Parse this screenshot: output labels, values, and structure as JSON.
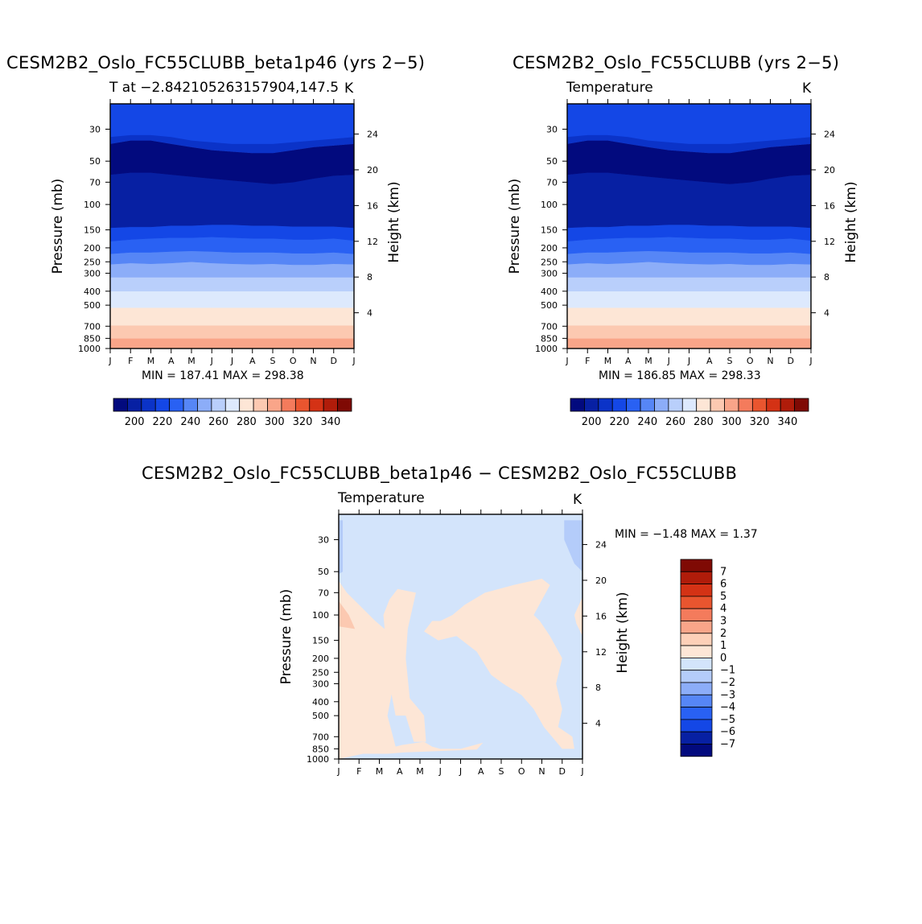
{
  "chart_data": [
    {
      "type": "contour",
      "title": "CESM2B2_Oslo_FC55CLUBB_beta1p46 (yrs 2−5)",
      "subtitle_left": "T at −2.842105263157904,147.5",
      "subtitle_right": "K",
      "xlabel": "",
      "ylabel": "Pressure (mb)",
      "ylabel_right": "Height (km)",
      "x_ticks": [
        "J",
        "F",
        "M",
        "A",
        "M",
        "J",
        "J",
        "A",
        "S",
        "O",
        "N",
        "D",
        "J"
      ],
      "y_ticks": [
        30,
        50,
        70,
        100,
        150,
        200,
        250,
        300,
        400,
        500,
        700,
        850,
        1000
      ],
      "y_ticks_right": [
        24,
        20,
        16,
        12,
        8,
        4
      ],
      "min_label": "MIN = 187.41  MAX = 298.38",
      "colorbar_labels": [
        "200",
        "220",
        "240",
        "260",
        "280",
        "300",
        "320",
        "340"
      ],
      "contour_levels": [
        190,
        200,
        210,
        220,
        230,
        240,
        250,
        260,
        270,
        280,
        290,
        300,
        310,
        320,
        330,
        340
      ],
      "band_boundaries_mb": [
        {
          "level": 270,
          "values": [
            520,
            520,
            520,
            520,
            520,
            520,
            520,
            520,
            520,
            520,
            520,
            520,
            520
          ]
        },
        {
          "level": 260,
          "values": [
            400,
            400,
            400,
            400,
            400,
            400,
            400,
            400,
            400,
            400,
            400,
            400,
            400
          ]
        },
        {
          "level": 250,
          "values": [
            320,
            320,
            320,
            320,
            320,
            320,
            320,
            320,
            320,
            320,
            320,
            320,
            320
          ]
        },
        {
          "level": 240,
          "values": [
            260,
            255,
            258,
            255,
            250,
            255,
            258,
            260,
            258,
            262,
            262,
            258,
            260
          ]
        },
        {
          "level": 230,
          "values": [
            220,
            215,
            215,
            212,
            210,
            212,
            215,
            215,
            215,
            218,
            218,
            215,
            220
          ]
        },
        {
          "level": 220,
          "values": [
            180,
            175,
            172,
            170,
            170,
            168,
            170,
            172,
            172,
            175,
            175,
            172,
            178
          ]
        },
        {
          "level": 210,
          "values": [
            145,
            143,
            143,
            140,
            140,
            138,
            138,
            140,
            140,
            142,
            142,
            142,
            145
          ]
        },
        {
          "level": 200,
          "values": [
            62,
            60,
            60,
            62,
            64,
            66,
            68,
            70,
            72,
            70,
            66,
            63,
            62
          ]
        },
        {
          "level": 210,
          "values": [
            38,
            36,
            36,
            38,
            40,
            42,
            43,
            44,
            44,
            42,
            40,
            39,
            38
          ]
        }
      ]
    },
    {
      "type": "contour",
      "title": "CESM2B2_Oslo_FC55CLUBB (yrs 2−5)",
      "subtitle_left": "Temperature",
      "subtitle_right": "K",
      "xlabel": "",
      "ylabel": "Pressure (mb)",
      "ylabel_right": "Height (km)",
      "x_ticks": [
        "J",
        "F",
        "M",
        "A",
        "M",
        "J",
        "J",
        "A",
        "S",
        "O",
        "N",
        "D",
        "J"
      ],
      "y_ticks": [
        30,
        50,
        70,
        100,
        150,
        200,
        250,
        300,
        400,
        500,
        700,
        850,
        1000
      ],
      "y_ticks_right": [
        24,
        20,
        16,
        12,
        8,
        4
      ],
      "min_label": "MIN = 186.85  MAX = 298.33",
      "colorbar_labels": [
        "200",
        "220",
        "240",
        "260",
        "280",
        "300",
        "320",
        "340"
      ],
      "contour_levels": [
        190,
        200,
        210,
        220,
        230,
        240,
        250,
        260,
        270,
        280,
        290,
        300,
        310,
        320,
        330,
        340
      ],
      "band_boundaries_mb": [
        {
          "level": 270,
          "values": [
            520,
            520,
            520,
            520,
            520,
            520,
            520,
            520,
            520,
            520,
            520,
            520,
            520
          ]
        },
        {
          "level": 260,
          "values": [
            400,
            400,
            400,
            400,
            400,
            400,
            400,
            400,
            400,
            400,
            400,
            400,
            400
          ]
        },
        {
          "level": 250,
          "values": [
            320,
            320,
            320,
            320,
            320,
            320,
            320,
            320,
            320,
            320,
            320,
            320,
            320
          ]
        },
        {
          "level": 240,
          "values": [
            260,
            255,
            258,
            255,
            250,
            255,
            258,
            260,
            258,
            262,
            262,
            258,
            260
          ]
        },
        {
          "level": 230,
          "values": [
            220,
            215,
            215,
            212,
            210,
            212,
            215,
            215,
            215,
            218,
            218,
            215,
            220
          ]
        },
        {
          "level": 220,
          "values": [
            180,
            175,
            172,
            170,
            170,
            168,
            170,
            172,
            172,
            175,
            175,
            172,
            178
          ]
        },
        {
          "level": 210,
          "values": [
            145,
            143,
            143,
            140,
            140,
            138,
            138,
            140,
            140,
            142,
            142,
            142,
            145
          ]
        },
        {
          "level": 200,
          "values": [
            62,
            60,
            60,
            62,
            64,
            66,
            68,
            70,
            72,
            70,
            66,
            63,
            62
          ]
        },
        {
          "level": 210,
          "values": [
            38,
            36,
            36,
            38,
            40,
            42,
            43,
            44,
            44,
            42,
            40,
            39,
            38
          ]
        }
      ]
    },
    {
      "type": "contour",
      "title": "CESM2B2_Oslo_FC55CLUBB_beta1p46 − CESM2B2_Oslo_FC55CLUBB",
      "subtitle_left": "Temperature",
      "subtitle_right": "K",
      "xlabel": "",
      "ylabel": "Pressure (mb)",
      "ylabel_right": "Height (km)",
      "x_ticks": [
        "J",
        "F",
        "M",
        "A",
        "M",
        "J",
        "J",
        "A",
        "S",
        "O",
        "N",
        "D",
        "J"
      ],
      "y_ticks": [
        30,
        50,
        70,
        100,
        150,
        200,
        250,
        300,
        400,
        500,
        700,
        850,
        1000
      ],
      "y_ticks_right": [
        24,
        20,
        16,
        12,
        8,
        4
      ],
      "min_label": "MIN =   −1.48  MAX =    1.37",
      "colorbar_labels": [
        "7",
        "6",
        "5",
        "4",
        "3",
        "2",
        "1",
        "0",
        "−1",
        "−2",
        "−3",
        "−4",
        "−5",
        "−6",
        "−7"
      ],
      "contour_levels": [
        -7,
        -6,
        -5,
        -4,
        -3,
        -2,
        -1,
        0,
        1,
        2,
        3,
        4,
        5,
        6,
        7
      ],
      "positive_regions_month_mb": [
        [
          [
            0,
            58
          ],
          [
            0.4,
            70
          ],
          [
            1.8,
            110
          ],
          [
            2.4,
            130
          ],
          [
            2.7,
            300
          ],
          [
            2.4,
            500
          ],
          [
            2.8,
            820
          ],
          [
            3.1,
            800
          ],
          [
            4.2,
            760
          ],
          [
            4.6,
            820
          ],
          [
            5.0,
            850
          ],
          [
            6.0,
            850
          ],
          [
            7.1,
            770
          ],
          [
            6.8,
            860
          ],
          [
            3.2,
            900
          ],
          [
            2.4,
            920
          ],
          [
            1.2,
            920
          ],
          [
            0,
            1000
          ]
        ],
        [
          [
            2.2,
            100
          ],
          [
            2.5,
            78
          ],
          [
            2.9,
            66
          ],
          [
            3.8,
            70
          ],
          [
            3.4,
            125
          ],
          [
            3.3,
            200
          ],
          [
            3.5,
            380
          ],
          [
            4.0,
            460
          ],
          [
            4.2,
            500
          ],
          [
            4.3,
            760
          ],
          [
            3.7,
            760
          ],
          [
            3.3,
            500
          ],
          [
            2.8,
            500
          ],
          [
            2.5,
            300
          ]
        ],
        [
          [
            4.2,
            130
          ],
          [
            4.6,
            110
          ],
          [
            5.0,
            110
          ],
          [
            5.6,
            100
          ],
          [
            6.2,
            85
          ],
          [
            7.2,
            70
          ],
          [
            8.6,
            62
          ],
          [
            10.0,
            56
          ],
          [
            10.4,
            62
          ],
          [
            9.6,
            100
          ],
          [
            9.9,
            110
          ],
          [
            10.4,
            140
          ],
          [
            11.0,
            200
          ],
          [
            10.7,
            300
          ],
          [
            11.0,
            450
          ],
          [
            10.8,
            600
          ],
          [
            11.5,
            700
          ],
          [
            11.6,
            850
          ],
          [
            11.0,
            850
          ],
          [
            10.1,
            600
          ],
          [
            9.6,
            450
          ],
          [
            9.0,
            360
          ],
          [
            8.1,
            300
          ],
          [
            7.5,
            260
          ],
          [
            6.8,
            180
          ],
          [
            5.8,
            140
          ],
          [
            4.9,
            150
          ]
        ],
        [
          [
            11.6,
            100
          ],
          [
            12,
            75
          ],
          [
            12,
            140
          ],
          [
            11.7,
            115
          ]
        ]
      ],
      "negative_regions_month_mb": [
        [
          [
            11.1,
            22
          ],
          [
            12,
            22
          ],
          [
            12,
            50
          ],
          [
            11.6,
            44
          ],
          [
            11.1,
            30
          ]
        ],
        [
          [
            0,
            22
          ],
          [
            0.2,
            22
          ],
          [
            0.2,
            50
          ],
          [
            0,
            52
          ]
        ]
      ]
    }
  ]
}
